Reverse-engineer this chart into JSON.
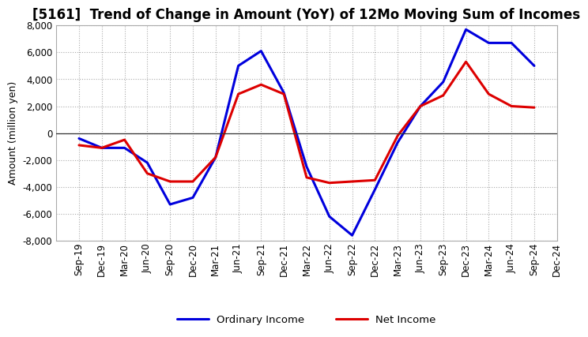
{
  "title": "[5161]  Trend of Change in Amount (YoY) of 12Mo Moving Sum of Incomes",
  "ylabel": "Amount (million yen)",
  "background_color": "#ffffff",
  "plot_bg_color": "#ffffff",
  "grid_color": "#aaaaaa",
  "labels": [
    "Sep-19",
    "Dec-19",
    "Mar-20",
    "Jun-20",
    "Sep-20",
    "Dec-20",
    "Mar-21",
    "Jun-21",
    "Sep-21",
    "Dec-21",
    "Mar-22",
    "Jun-22",
    "Sep-22",
    "Dec-22",
    "Mar-23",
    "Jun-23",
    "Sep-23",
    "Dec-23",
    "Mar-24",
    "Jun-24",
    "Sep-24",
    "Dec-24"
  ],
  "ordinary_income": [
    -400,
    -1100,
    -1100,
    -2200,
    -5300,
    -4800,
    -1800,
    5000,
    6100,
    3000,
    -2500,
    -6200,
    -7600,
    -4200,
    -700,
    2000,
    3800,
    7700,
    6700,
    6700,
    5000,
    null
  ],
  "net_income": [
    -900,
    -1100,
    -500,
    -3000,
    -3600,
    -3600,
    -1800,
    2900,
    3600,
    2900,
    -3300,
    -3700,
    -3600,
    -3500,
    -200,
    2000,
    2800,
    5300,
    2900,
    2000,
    1900,
    null
  ],
  "ordinary_color": "#0000dd",
  "net_color": "#dd0000",
  "ylim": [
    -8000,
    8000
  ],
  "yticks": [
    -8000,
    -6000,
    -4000,
    -2000,
    0,
    2000,
    4000,
    6000,
    8000
  ],
  "line_width": 2.2,
  "legend_labels": [
    "Ordinary Income",
    "Net Income"
  ],
  "title_fontsize": 12,
  "ylabel_fontsize": 9,
  "tick_fontsize": 8.5
}
